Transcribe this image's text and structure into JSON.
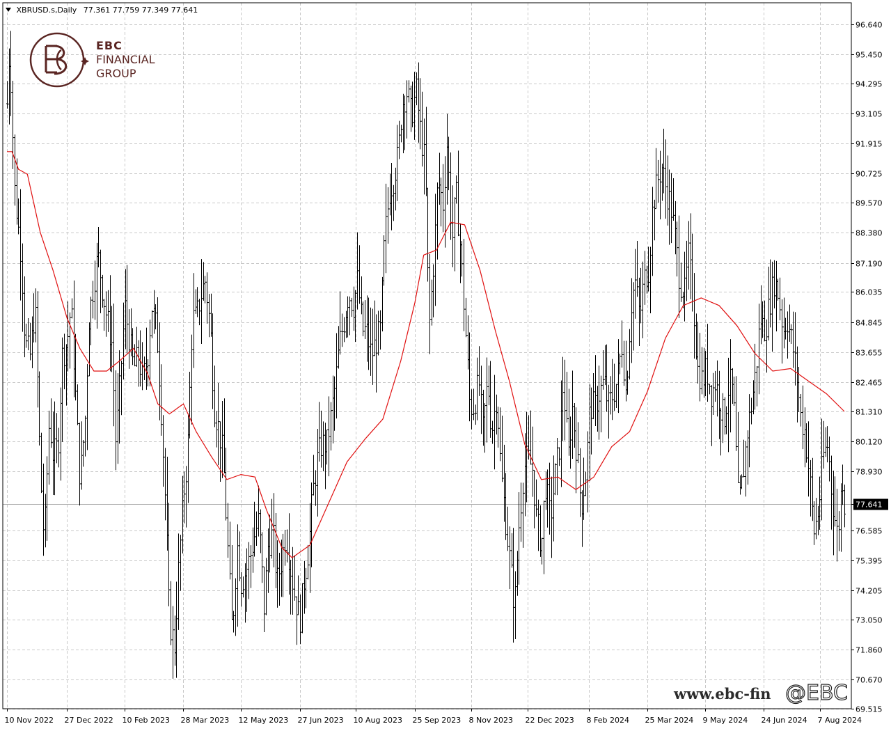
{
  "header": {
    "symbol": "XBRUSD.s,Daily",
    "ohlc": "77.361 77.759 77.349 77.641"
  },
  "logo": {
    "line1": "EBC",
    "line2": "FINANCIAL",
    "line3": "GROUP"
  },
  "watermark": {
    "url": "www.ebc-fin",
    "handle": "@EBC"
  },
  "colors": {
    "candles": "#000000",
    "moving_average": "#e01010",
    "grid": "#c8c8c8",
    "price_label_bg": "#000000",
    "logo": "#5a2522"
  },
  "chart_data": {
    "type": "line",
    "title": "XBRUSD.s,Daily",
    "xlabel": "",
    "ylabel": "",
    "grid": true,
    "ylim": [
      69.515,
      97.5
    ],
    "y_ticks": [
      "96.640",
      "95.450",
      "94.295",
      "93.105",
      "91.915",
      "90.725",
      "89.570",
      "88.380",
      "87.190",
      "86.035",
      "84.845",
      "83.655",
      "82.465",
      "81.310",
      "80.120",
      "78.930",
      "77.641",
      "76.585",
      "75.395",
      "74.205",
      "73.050",
      "71.860",
      "70.670",
      "69.515"
    ],
    "x_ticks": [
      "10 Nov 2022",
      "27 Dec 2022",
      "10 Feb 2023",
      "28 Mar 2023",
      "12 May 2023",
      "27 Jun 2023",
      "10 Aug 2023",
      "25 Sep 2023",
      "8 Nov 2023",
      "22 Dec 2023",
      "8 Feb 2024",
      "25 Mar 2024",
      "9 May 2024",
      "24 Jun 2024",
      "7 Aug 2024"
    ],
    "current_price": 77.641,
    "price_path": [
      [
        "10 Nov 2022",
        93.5
      ],
      [
        "12 Nov 2022",
        95.9
      ],
      [
        "16 Nov 2022",
        90.0
      ],
      [
        "21 Nov 2022",
        87.5
      ],
      [
        "24 Nov 2022",
        84.0
      ],
      [
        "28 Nov 2022",
        83.5
      ],
      [
        "2 Dec 2022",
        85.5
      ],
      [
        "6 Dec 2022",
        79.0
      ],
      [
        "9 Dec 2022",
        76.0
      ],
      [
        "13 Dec 2022",
        81.0
      ],
      [
        "16 Dec 2022",
        79.5
      ],
      [
        "20 Dec 2022",
        80.0
      ],
      [
        "23 Dec 2022",
        83.5
      ],
      [
        "27 Dec 2022",
        84.0
      ],
      [
        "30 Dec 2022",
        85.5
      ],
      [
        "3 Jan 2023",
        81.5
      ],
      [
        "6 Jan 2023",
        78.5
      ],
      [
        "10 Jan 2023",
        81.0
      ],
      [
        "13 Jan 2023",
        85.0
      ],
      [
        "17 Jan 2023",
        86.5
      ],
      [
        "20 Jan 2023",
        87.5
      ],
      [
        "24 Jan 2023",
        86.0
      ],
      [
        "27 Jan 2023",
        85.0
      ],
      [
        "31 Jan 2023",
        84.0
      ],
      [
        "3 Feb 2023",
        80.0
      ],
      [
        "7 Feb 2023",
        83.0
      ],
      [
        "10 Feb 2023",
        85.5
      ],
      [
        "14 Feb 2023",
        84.0
      ],
      [
        "17 Feb 2023",
        83.0
      ],
      [
        "21 Feb 2023",
        83.5
      ],
      [
        "24 Feb 2023",
        82.5
      ],
      [
        "28 Feb 2023",
        83.5
      ],
      [
        "3 Mar 2023",
        85.5
      ],
      [
        "7 Mar 2023",
        84.5
      ],
      [
        "10 Mar 2023",
        82.0
      ],
      [
        "14 Mar 2023",
        77.5
      ],
      [
        "17 Mar 2023",
        73.0
      ],
      [
        "21 Mar 2023",
        72.0
      ],
      [
        "24 Mar 2023",
        75.0
      ],
      [
        "28 Mar 2023",
        78.0
      ],
      [
        "31 Mar 2023",
        79.5
      ],
      [
        "4 Apr 2023",
        85.0
      ],
      [
        "7 Apr 2023",
        85.0
      ],
      [
        "11 Apr 2023",
        86.0
      ],
      [
        "14 Apr 2023",
        86.5
      ],
      [
        "18 Apr 2023",
        84.5
      ],
      [
        "21 Apr 2023",
        81.5
      ],
      [
        "25 Apr 2023",
        80.5
      ],
      [
        "28 Apr 2023",
        79.5
      ],
      [
        "2 May 2023",
        75.5
      ],
      [
        "5 May 2023",
        72.5
      ],
      [
        "9 May 2023",
        76.0
      ],
      [
        "12 May 2023",
        74.5
      ],
      [
        "16 May 2023",
        75.0
      ],
      [
        "19 May 2023",
        75.5
      ],
      [
        "23 May 2023",
        76.5
      ],
      [
        "26 May 2023",
        77.0
      ],
      [
        "30 May 2023",
        73.5
      ],
      [
        "2 Jun 2023",
        76.0
      ],
      [
        "6 Jun 2023",
        76.5
      ],
      [
        "9 Jun 2023",
        74.5
      ],
      [
        "13 Jun 2023",
        75.5
      ],
      [
        "16 Jun 2023",
        76.5
      ],
      [
        "20 Jun 2023",
        75.0
      ],
      [
        "23 Jun 2023",
        74.0
      ],
      [
        "27 Jun 2023",
        73.0
      ],
      [
        "30 Jun 2023",
        74.5
      ],
      [
        "4 Jul 2023",
        76.0
      ],
      [
        "7 Jul 2023",
        78.0
      ],
      [
        "11 Jul 2023",
        79.5
      ],
      [
        "14 Jul 2023",
        80.0
      ],
      [
        "18 Jul 2023",
        80.0
      ],
      [
        "21 Jul 2023",
        81.0
      ],
      [
        "25 Jul 2023",
        82.5
      ],
      [
        "28 Jul 2023",
        84.0
      ],
      [
        "1 Aug 2023",
        85.0
      ],
      [
        "4 Aug 2023",
        86.0
      ],
      [
        "8 Aug 2023",
        85.5
      ],
      [
        "11 Aug 2023",
        86.5
      ],
      [
        "15 Aug 2023",
        84.5
      ],
      [
        "18 Aug 2023",
        84.5
      ],
      [
        "22 Aug 2023",
        83.5
      ],
      [
        "25 Aug 2023",
        84.0
      ],
      [
        "29 Aug 2023",
        84.5
      ],
      [
        "1 Sep 2023",
        88.0
      ],
      [
        "5 Sep 2023",
        90.0
      ],
      [
        "8 Sep 2023",
        90.5
      ],
      [
        "12 Sep 2023",
        91.5
      ],
      [
        "15 Sep 2023",
        93.5
      ],
      [
        "19 Sep 2023",
        94.0
      ],
      [
        "22 Sep 2023",
        93.0
      ],
      [
        "26 Sep 2023",
        94.0
      ],
      [
        "29 Sep 2023",
        92.5
      ],
      [
        "3 Oct 2023",
        91.0
      ],
      [
        "6 Oct 2023",
        84.5
      ],
      [
        "10 Oct 2023",
        87.5
      ],
      [
        "13 Oct 2023",
        90.5
      ],
      [
        "17 Oct 2023",
        89.5
      ],
      [
        "20 Oct 2023",
        92.0
      ],
      [
        "24 Oct 2023",
        88.0
      ],
      [
        "27 Oct 2023",
        90.0
      ],
      [
        "31 Oct 2023",
        87.5
      ],
      [
        "3 Nov 2023",
        85.0
      ],
      [
        "7 Nov 2023",
        81.5
      ],
      [
        "10 Nov 2023",
        81.5
      ],
      [
        "14 Nov 2023",
        82.5
      ],
      [
        "17 Nov 2023",
        80.5
      ],
      [
        "21 Nov 2023",
        82.5
      ],
      [
        "24 Nov 2023",
        80.5
      ],
      [
        "28 Nov 2023",
        82.0
      ],
      [
        "1 Dec 2023",
        79.0
      ],
      [
        "5 Dec 2023",
        77.0
      ],
      [
        "8 Dec 2023",
        75.5
      ],
      [
        "12 Dec 2023",
        73.5
      ],
      [
        "15 Dec 2023",
        76.5
      ],
      [
        "19 Dec 2023",
        79.0
      ],
      [
        "22 Dec 2023",
        79.5
      ],
      [
        "26 Dec 2023",
        79.0
      ],
      [
        "29 Dec 2023",
        77.0
      ],
      [
        "2 Jan 2024",
        76.0
      ],
      [
        "5 Jan 2024",
        78.5
      ],
      [
        "9 Jan 2024",
        77.0
      ],
      [
        "12 Jan 2024",
        78.5
      ],
      [
        "16 Jan 2024",
        80.0
      ],
      [
        "19 Jan 2024",
        82.5
      ],
      [
        "23 Jan 2024",
        79.5
      ],
      [
        "26 Jan 2024",
        81.5
      ],
      [
        "30 Jan 2024",
        79.5
      ],
      [
        "2 Feb 2024",
        77.5
      ],
      [
        "6 Feb 2024",
        79.0
      ],
      [
        "9 Feb 2024",
        81.5
      ],
      [
        "13 Feb 2024",
        81.5
      ],
      [
        "16 Feb 2024",
        82.0
      ],
      [
        "20 Feb 2024",
        82.5
      ],
      [
        "23 Feb 2024",
        81.5
      ],
      [
        "27 Feb 2024",
        82.0
      ],
      [
        "1 Mar 2024",
        82.5
      ],
      [
        "5 Mar 2024",
        84.0
      ],
      [
        "8 Mar 2024",
        82.0
      ],
      [
        "12 Mar 2024",
        85.5
      ],
      [
        "15 Mar 2024",
        86.5
      ],
      [
        "19 Mar 2024",
        85.0
      ],
      [
        "22 Mar 2024",
        86.5
      ],
      [
        "26 Mar 2024",
        87.0
      ],
      [
        "29 Mar 2024",
        89.5
      ],
      [
        "2 Apr 2024",
        90.5
      ],
      [
        "5 Apr 2024",
        91.0
      ],
      [
        "9 Apr 2024",
        90.0
      ],
      [
        "12 Apr 2024",
        89.5
      ],
      [
        "16 Apr 2024",
        88.0
      ],
      [
        "19 Apr 2024",
        86.5
      ],
      [
        "23 Apr 2024",
        86.0
      ],
      [
        "26 Apr 2024",
        87.5
      ],
      [
        "30 Apr 2024",
        85.5
      ],
      [
        "3 May 2024",
        83.0
      ],
      [
        "7 May 2024",
        82.5
      ],
      [
        "10 May 2024",
        83.0
      ],
      [
        "14 May 2024",
        82.0
      ],
      [
        "17 May 2024",
        82.5
      ],
      [
        "21 May 2024",
        81.5
      ],
      [
        "24 May 2024",
        81.0
      ],
      [
        "28 May 2024",
        82.5
      ],
      [
        "31 May 2024",
        82.0
      ],
      [
        "4 Jun 2024",
        77.5
      ],
      [
        "7 Jun 2024",
        78.5
      ],
      [
        "11 Jun 2024",
        80.5
      ],
      [
        "14 Jun 2024",
        81.5
      ],
      [
        "18 Jun 2024",
        83.0
      ],
      [
        "21 Jun 2024",
        85.0
      ],
      [
        "25 Jun 2024",
        84.5
      ],
      [
        "28 Jun 2024",
        85.5
      ],
      [
        "2 Jul 2024",
        86.5
      ],
      [
        "5 Jul 2024",
        86.0
      ],
      [
        "9 Jul 2024",
        84.5
      ],
      [
        "12 Jul 2024",
        85.0
      ],
      [
        "16 Jul 2024",
        84.0
      ],
      [
        "19 Jul 2024",
        83.0
      ],
      [
        "23 Jul 2024",
        81.0
      ],
      [
        "26 Jul 2024",
        80.5
      ],
      [
        "30 Jul 2024",
        78.5
      ],
      [
        "2 Aug 2024",
        76.5
      ],
      [
        "6 Aug 2024",
        77.5
      ],
      [
        "9 Aug 2024",
        79.5
      ],
      [
        "13 Aug 2024",
        80.0
      ],
      [
        "16 Aug 2024",
        78.0
      ],
      [
        "20 Aug 2024",
        76.5
      ],
      [
        "22 Aug 2024",
        77.0
      ],
      [
        "24 Aug 2024",
        79.0
      ],
      [
        "26 Aug 2024",
        77.641
      ]
    ],
    "moving_average_path": [
      [
        "10 Nov 2022",
        91.6
      ],
      [
        "14 Nov 2022",
        91.6
      ],
      [
        "19 Nov 2022",
        90.9
      ],
      [
        "26 Nov 2022",
        90.7
      ],
      [
        "6 Dec 2022",
        88.4
      ],
      [
        "16 Dec 2022",
        86.9
      ],
      [
        "27 Dec 2022",
        85.0
      ],
      [
        "6 Jan 2023",
        83.8
      ],
      [
        "17 Jan 2023",
        82.9
      ],
      [
        "27 Jan 2023",
        82.9
      ],
      [
        "6 Feb 2023",
        83.3
      ],
      [
        "17 Feb 2023",
        83.8
      ],
      [
        "28 Feb 2023",
        82.8
      ],
      [
        "8 Mar 2023",
        81.6
      ],
      [
        "17 Mar 2023",
        81.2
      ],
      [
        "28 Mar 2023",
        81.6
      ],
      [
        "7 Apr 2023",
        80.5
      ],
      [
        "19 Apr 2023",
        79.5
      ],
      [
        "1 May 2023",
        78.6
      ],
      [
        "12 May 2023",
        78.8
      ],
      [
        "23 May 2023",
        78.7
      ],
      [
        "1 Jun 2023",
        77.4
      ],
      [
        "13 Jun 2023",
        75.9
      ],
      [
        "21 Jun 2023",
        75.5
      ],
      [
        "5 Jul 2023",
        76.0
      ],
      [
        "19 Jul 2023",
        77.6
      ],
      [
        "3 Aug 2023",
        79.3
      ],
      [
        "17 Aug 2023",
        80.2
      ],
      [
        "31 Aug 2023",
        81.0
      ],
      [
        "14 Sep 2023",
        83.3
      ],
      [
        "25 Sep 2023",
        85.6
      ],
      [
        "2 Oct 2023",
        87.5
      ],
      [
        "12 Oct 2023",
        87.7
      ],
      [
        "23 Oct 2023",
        88.8
      ],
      [
        "3 Nov 2023",
        88.7
      ],
      [
        "15 Nov 2023",
        86.9
      ],
      [
        "27 Nov 2023",
        84.5
      ],
      [
        "8 Dec 2023",
        82.5
      ],
      [
        "20 Dec 2023",
        80.0
      ],
      [
        "2 Jan 2024",
        78.6
      ],
      [
        "15 Jan 2024",
        78.7
      ],
      [
        "29 Jan 2024",
        78.2
      ],
      [
        "12 Feb 2024",
        78.7
      ],
      [
        "26 Feb 2024",
        79.9
      ],
      [
        "11 Mar 2024",
        80.5
      ],
      [
        "25 Mar 2024",
        82.1
      ],
      [
        "8 Apr 2024",
        84.2
      ],
      [
        "22 Apr 2024",
        85.5
      ],
      [
        "6 May 2024",
        85.8
      ],
      [
        "20 May 2024",
        85.5
      ],
      [
        "3 Jun 2024",
        84.7
      ],
      [
        "17 Jun 2024",
        83.6
      ],
      [
        "1 Jul 2024",
        82.9
      ],
      [
        "15 Jul 2024",
        83.0
      ],
      [
        "29 Jul 2024",
        82.5
      ],
      [
        "12 Aug 2024",
        82.0
      ],
      [
        "26 Aug 2024",
        81.3
      ]
    ]
  }
}
